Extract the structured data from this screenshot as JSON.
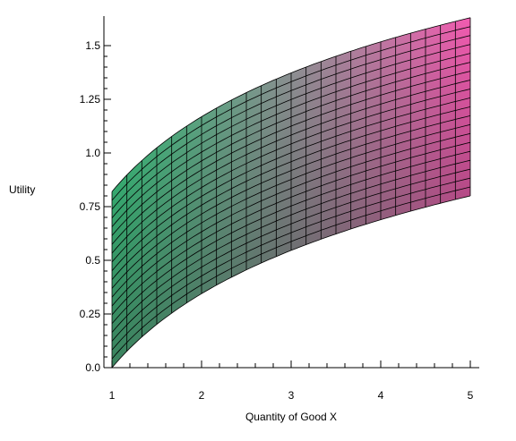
{
  "chart_data": {
    "type": "surface",
    "title": "",
    "xlabel": "Quantity of Good X",
    "ylabel": "Utility",
    "xlim": [
      1,
      5
    ],
    "ylim": [
      0,
      1.65
    ],
    "x_ticks": [
      {
        "value": 1,
        "label": "1"
      },
      {
        "value": 2,
        "label": "2"
      },
      {
        "value": 3,
        "label": "3"
      },
      {
        "value": 4,
        "label": "4"
      },
      {
        "value": 5,
        "label": "5"
      }
    ],
    "y_ticks": [
      {
        "value": 0.0,
        "label": "0.0"
      },
      {
        "value": 0.25,
        "label": "0.25"
      },
      {
        "value": 0.5,
        "label": "0.5"
      },
      {
        "value": 0.75,
        "label": "0.75"
      },
      {
        "value": 1.0,
        "label": "1.0"
      },
      {
        "value": 1.25,
        "label": "1.25"
      },
      {
        "value": 1.5,
        "label": "1.5"
      }
    ],
    "x": [
      1,
      5
    ],
    "lower_edge": [
      0.0,
      0.8
    ],
    "upper_edge": [
      0.82,
      1.63
    ],
    "grid": {
      "columns": 24,
      "rows": 20
    },
    "colors": {
      "low_left": "#3a3a3a",
      "high_left": "#3ddc8c",
      "low_right": "#b24a92",
      "high_right": "#f25bb0",
      "mesh": "#000000"
    }
  }
}
